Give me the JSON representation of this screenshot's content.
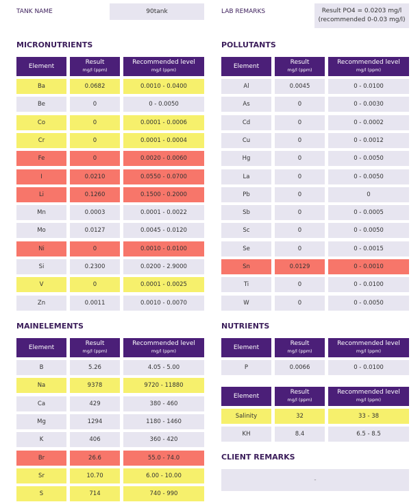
{
  "header": {
    "tank_name_label": "TANK NAME",
    "tank_name": "90tank",
    "lab_remarks_label": "LAB REMARKS",
    "lab_remarks": [
      "Result PO4 = 0.0203 mg/l",
      "(recommended 0-0.03 mg/l)"
    ]
  },
  "sections": [
    {
      "title": "MICRONUTRIENTS",
      "tables": [
        {
          "columns": [
            {
              "title": "Element"
            },
            {
              "title": "Result",
              "unit": "mg/l (ppm)"
            },
            {
              "title": "Recommended level",
              "unit": "mg/l (ppm)"
            }
          ],
          "rows": [
            {
              "cells": [
                "Ba",
                "0.0682",
                "0.0010 - 0.0400"
              ],
              "color": "#f6f06c"
            },
            {
              "cells": [
                "Be",
                "0",
                "0 - 0.0050"
              ],
              "color": "#e7e5f0"
            },
            {
              "cells": [
                "Co",
                "0",
                "0.0001 - 0.0006"
              ],
              "color": "#f6f06c"
            },
            {
              "cells": [
                "Cr",
                "0",
                "0.0001 - 0.0004"
              ],
              "color": "#f6f06c"
            },
            {
              "cells": [
                "Fe",
                "0",
                "0.0020 - 0.0060"
              ],
              "color": "#f7766a"
            },
            {
              "cells": [
                "I",
                "0.0210",
                "0.0550 - 0.0700"
              ],
              "color": "#f7766a"
            },
            {
              "cells": [
                "Li",
                "0.1260",
                "0.1500 - 0.2000"
              ],
              "color": "#f7766a"
            },
            {
              "cells": [
                "Mn",
                "0.0003",
                "0.0001 - 0.0022"
              ],
              "color": "#e7e5f0"
            },
            {
              "cells": [
                "Mo",
                "0.0127",
                "0.0045 - 0.0120"
              ],
              "color": "#e7e5f0"
            },
            {
              "cells": [
                "Ni",
                "0",
                "0.0010 - 0.0100"
              ],
              "color": "#f7766a"
            },
            {
              "cells": [
                "Si",
                "0.2300",
                "0.0200 - 2.9000"
              ],
              "color": "#e7e5f0"
            },
            {
              "cells": [
                "V",
                "0",
                "0.0001 - 0.0025"
              ],
              "color": "#f6f06c"
            },
            {
              "cells": [
                "Zn",
                "0.0011",
                "0.0010 - 0.0070"
              ],
              "color": "#e7e5f0"
            }
          ]
        }
      ]
    },
    {
      "title": "POLLUTANTS",
      "tables": [
        {
          "columns": [
            {
              "title": "Element"
            },
            {
              "title": "Result",
              "unit": "mg/l (ppm)"
            },
            {
              "title": "Recommended level",
              "unit": "mg/l (ppm)"
            }
          ],
          "rows": [
            {
              "cells": [
                "Al",
                "0.0045",
                "0 - 0.0100"
              ],
              "color": "#e7e5f0"
            },
            {
              "cells": [
                "As",
                "0",
                "0 - 0.0030"
              ],
              "color": "#e7e5f0"
            },
            {
              "cells": [
                "Cd",
                "0",
                "0 - 0.0002"
              ],
              "color": "#e7e5f0"
            },
            {
              "cells": [
                "Cu",
                "0",
                "0 - 0.0012"
              ],
              "color": "#e7e5f0"
            },
            {
              "cells": [
                "Hg",
                "0",
                "0 - 0.0050"
              ],
              "color": "#e7e5f0"
            },
            {
              "cells": [
                "La",
                "0",
                "0 - 0.0050"
              ],
              "color": "#e7e5f0"
            },
            {
              "cells": [
                "Pb",
                "0",
                "0"
              ],
              "color": "#e7e5f0"
            },
            {
              "cells": [
                "Sb",
                "0",
                "0 - 0.0005"
              ],
              "color": "#e7e5f0"
            },
            {
              "cells": [
                "Sc",
                "0",
                "0 - 0.0050"
              ],
              "color": "#e7e5f0"
            },
            {
              "cells": [
                "Se",
                "0",
                "0 - 0.0015"
              ],
              "color": "#e7e5f0"
            },
            {
              "cells": [
                "Sn",
                "0.0129",
                "0 - 0.0010"
              ],
              "color": "#f7766a"
            },
            {
              "cells": [
                "Ti",
                "0",
                "0 - 0.0100"
              ],
              "color": "#e7e5f0"
            },
            {
              "cells": [
                "W",
                "0",
                "0 - 0.0050"
              ],
              "color": "#e7e5f0"
            }
          ]
        }
      ]
    },
    {
      "title": "MAINELEMENTS",
      "tables": [
        {
          "columns": [
            {
              "title": "Element"
            },
            {
              "title": "Result",
              "unit": "mg/l (ppm)"
            },
            {
              "title": "Recommended level",
              "unit": "mg/l (ppm)"
            }
          ],
          "rows": [
            {
              "cells": [
                "B",
                "5.26",
                "4.05 - 5.00"
              ],
              "color": "#e7e5f0"
            },
            {
              "cells": [
                "Na",
                "9378",
                "9720 - 11880"
              ],
              "color": "#f6f06c"
            },
            {
              "cells": [
                "Ca",
                "429",
                "380 - 460"
              ],
              "color": "#e7e5f0"
            },
            {
              "cells": [
                "Mg",
                "1294",
                "1180 - 1460"
              ],
              "color": "#e7e5f0"
            },
            {
              "cells": [
                "K",
                "406",
                "360 - 420"
              ],
              "color": "#e7e5f0"
            },
            {
              "cells": [
                "Br",
                "26.6",
                "55.0 - 74.0"
              ],
              "color": "#f7766a"
            },
            {
              "cells": [
                "Sr",
                "10.70",
                "6.00 - 10.00"
              ],
              "color": "#f6f06c"
            },
            {
              "cells": [
                "S",
                "714",
                "740 - 990"
              ],
              "color": "#f6f06c"
            }
          ]
        }
      ]
    },
    {
      "title": "NUTRIENTS",
      "tables": [
        {
          "columns": [
            {
              "title": "Element"
            },
            {
              "title": "Result",
              "unit": "mg/l (ppm)"
            },
            {
              "title": "Recommended level",
              "unit": "mg/l (ppm)"
            }
          ],
          "rows": [
            {
              "cells": [
                "P",
                "0.0066",
                "0 - 0.0100"
              ],
              "color": "#e7e5f0"
            }
          ]
        },
        {
          "columns": [
            {
              "title": "Element"
            },
            {
              "title": "Result",
              "unit": "mg/l (ppm)"
            },
            {
              "title": "Recommended level",
              "unit": "mg/l (ppm)"
            }
          ],
          "rows": [
            {
              "cells": [
                "Salinity",
                "32",
                "33 - 38"
              ],
              "color": "#f6f06c"
            },
            {
              "cells": [
                "KH",
                "8.4",
                "6.5 - 8.5"
              ],
              "color": "#e7e5f0"
            }
          ]
        }
      ]
    }
  ],
  "client_remarks": {
    "title": "CLIENT REMARKS",
    "text": "-"
  }
}
